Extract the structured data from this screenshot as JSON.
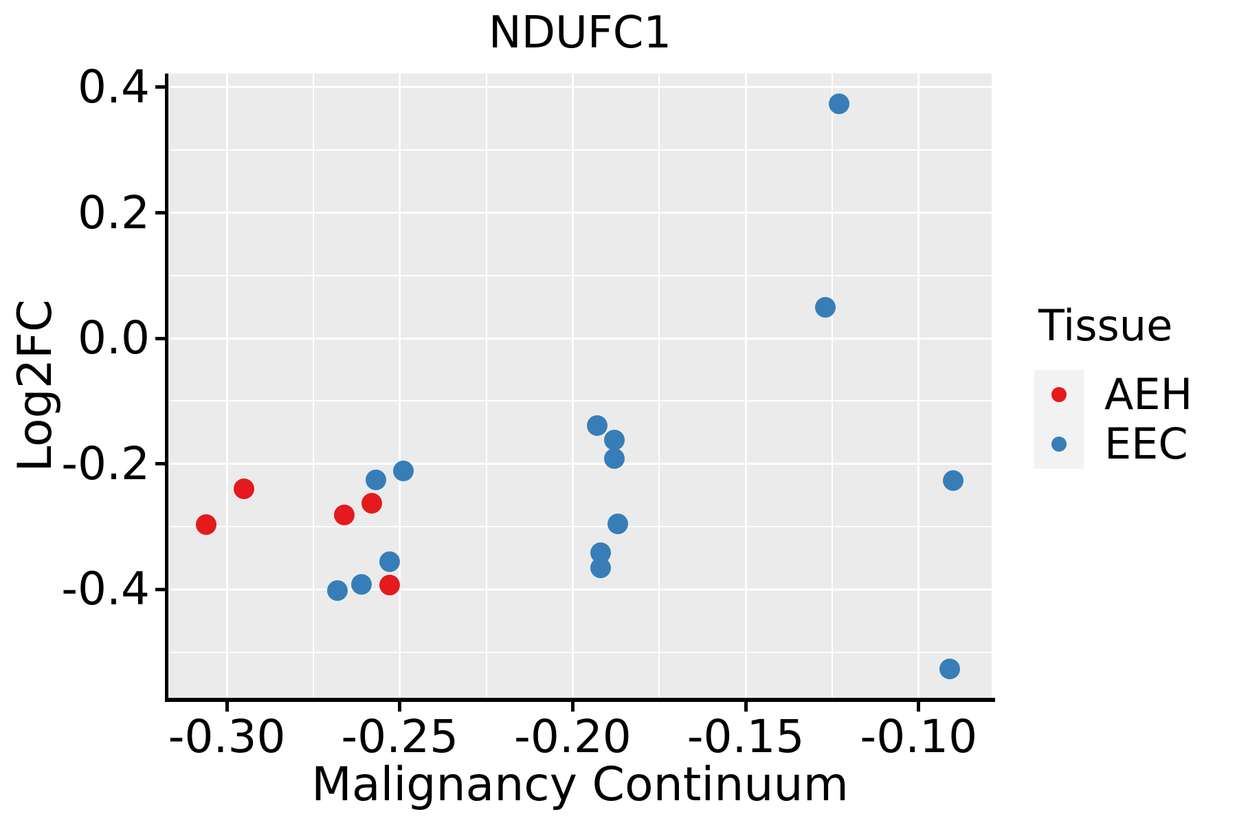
{
  "figure": {
    "title": "NDUFC1",
    "x_axis_title": "Malignancy Continuum",
    "y_axis_title": "Log2FC"
  },
  "legend": {
    "title": "Tissue",
    "items": [
      {
        "label": "AEH",
        "color": "#E41A1C"
      },
      {
        "label": "EEC",
        "color": "#377EB8"
      }
    ]
  },
  "chart_data": {
    "type": "scatter",
    "title": "NDUFC1",
    "xlabel": "Malignancy Continuum",
    "ylabel": "Log2FC",
    "xlim": [
      -0.3169,
      -0.0789
    ],
    "ylim": [
      -0.5727,
      0.4219
    ],
    "grid": true,
    "legend_position": "right",
    "x_ticks": [
      {
        "value": -0.3,
        "label": "-0.30"
      },
      {
        "value": -0.25,
        "label": "-0.25"
      },
      {
        "value": -0.2,
        "label": "-0.20"
      },
      {
        "value": -0.15,
        "label": "-0.15"
      },
      {
        "value": -0.1,
        "label": "-0.10"
      }
    ],
    "y_ticks": [
      {
        "value": 0.4,
        "label": "0.4"
      },
      {
        "value": 0.2,
        "label": "0.2"
      },
      {
        "value": 0.0,
        "label": "0.0"
      },
      {
        "value": -0.2,
        "label": "-0.2"
      },
      {
        "value": -0.4,
        "label": "-0.4"
      }
    ],
    "x_minor_ticks": [
      -0.275,
      -0.225,
      -0.175,
      -0.125
    ],
    "y_minor_ticks": [
      0.3,
      0.1,
      -0.1,
      -0.3,
      -0.5
    ],
    "series": [
      {
        "name": "AEH",
        "color": "#E41A1C",
        "points": [
          {
            "x": -0.306,
            "y": -0.297
          },
          {
            "x": -0.295,
            "y": -0.24
          },
          {
            "x": -0.266,
            "y": -0.281
          },
          {
            "x": -0.258,
            "y": -0.263
          },
          {
            "x": -0.253,
            "y": -0.393
          }
        ]
      },
      {
        "name": "EEC",
        "color": "#377EB8",
        "points": [
          {
            "x": -0.268,
            "y": -0.402
          },
          {
            "x": -0.261,
            "y": -0.392
          },
          {
            "x": -0.257,
            "y": -0.225
          },
          {
            "x": -0.249,
            "y": -0.211
          },
          {
            "x": -0.253,
            "y": -0.356
          },
          {
            "x": -0.193,
            "y": -0.139
          },
          {
            "x": -0.188,
            "y": -0.162
          },
          {
            "x": -0.188,
            "y": -0.192
          },
          {
            "x": -0.187,
            "y": -0.296
          },
          {
            "x": -0.192,
            "y": -0.342
          },
          {
            "x": -0.192,
            "y": -0.366
          },
          {
            "x": -0.127,
            "y": 0.05
          },
          {
            "x": -0.123,
            "y": 0.374
          },
          {
            "x": -0.09,
            "y": -0.227
          },
          {
            "x": -0.091,
            "y": -0.527
          }
        ]
      }
    ],
    "style": {
      "panel_bg": "#EBEBEB",
      "grid_color": "#FFFFFF",
      "spine_color": "#000000",
      "text_color": "#000000",
      "legend_key_bg": "#F2F2F2",
      "marker_diameter_px": 30
    }
  }
}
